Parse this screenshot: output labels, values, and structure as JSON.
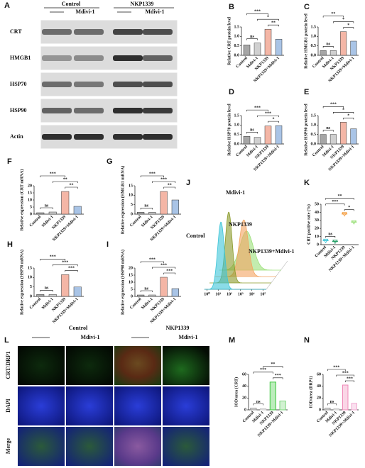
{
  "blot": {
    "panel": "A",
    "groups": [
      "Control",
      "NKP1339"
    ],
    "treatments": [
      "Mdivi-1",
      "Mdivi-1"
    ],
    "proteins": [
      "CRT",
      "HMGB1",
      "HSP70",
      "HSP90",
      "Actin"
    ]
  },
  "microscopy": {
    "panel": "L",
    "groups": [
      "Control",
      "NKP1339"
    ],
    "treatments": [
      "Mdivi-1",
      "Mdivi-1"
    ],
    "rows": [
      "CRT/DRP1",
      "DAPI",
      "Merge"
    ]
  },
  "chart_data": [
    {
      "panel": "B",
      "type": "bar",
      "ylabel": "Relative CRT protein level",
      "categories": [
        "Control",
        "Mdivi-1",
        "NKP1339",
        "NKP1339+Mdivi-1"
      ],
      "values": [
        0.55,
        0.65,
        1.38,
        0.85
      ],
      "colors": [
        "#a6a6a6",
        "#d0d0d0",
        "#f4b6a6",
        "#a9c4e6"
      ],
      "ylim": [
        0,
        1.5
      ],
      "yticks": [
        {
          "value": 0,
          "label": "0.0"
        },
        0.5,
        {
          "value": 1,
          "label": "1.0"
        },
        1.5
      ],
      "comparisons": [
        {
          "label": "ns",
          "pair": [
            0,
            1
          ]
        },
        {
          "label": "**",
          "pair": [
            2,
            3
          ]
        },
        {
          "label": "*",
          "pair": [
            1,
            3
          ]
        },
        {
          "label": "***",
          "pair": [
            0,
            2
          ]
        }
      ]
    },
    {
      "panel": "C",
      "type": "bar",
      "ylabel": "Relative HMGB1 protein level",
      "categories": [
        "Control",
        "Mdivi-1",
        "NKP1339",
        "NKP1339+Mdivi-1"
      ],
      "values": [
        0.25,
        0.25,
        1.25,
        0.75
      ],
      "colors": [
        "#a6a6a6",
        "#d0d0d0",
        "#f4b6a6",
        "#a9c4e6"
      ],
      "ylim": [
        0,
        1.5
      ],
      "yticks": [
        {
          "value": 0,
          "label": "0.0"
        },
        0.5,
        {
          "value": 1,
          "label": "1.0"
        },
        1.5
      ],
      "comparisons": [
        {
          "label": "ns",
          "pair": [
            0,
            1
          ]
        },
        {
          "label": "*",
          "pair": [
            2,
            3
          ]
        },
        {
          "label": "*",
          "pair": [
            1,
            3
          ]
        },
        {
          "label": "**",
          "pair": [
            0,
            2
          ]
        }
      ]
    },
    {
      "panel": "D",
      "type": "bar",
      "ylabel": "Relative HSP70 protein level",
      "categories": [
        "Control",
        "Mdivi-1",
        "NKP1339",
        "NKP1339+Mdivi-1"
      ],
      "values": [
        0.4,
        0.35,
        0.95,
        0.97
      ],
      "colors": [
        "#a6a6a6",
        "#d0d0d0",
        "#f4b6a6",
        "#a9c4e6"
      ],
      "ylim": [
        0,
        1.5
      ],
      "yticks": [
        {
          "value": 0,
          "label": "0.0"
        },
        0.5,
        {
          "value": 1,
          "label": "1.0"
        },
        1.5
      ],
      "comparisons": [
        {
          "label": "ns",
          "pair": [
            0,
            1
          ]
        },
        {
          "label": "*",
          "pair": [
            2,
            3
          ]
        },
        {
          "label": "***",
          "pair": [
            1,
            3
          ]
        },
        {
          "label": "***",
          "pair": [
            0,
            2
          ]
        }
      ]
    },
    {
      "panel": "E",
      "type": "bar",
      "ylabel": "Relative HSP90 protein level",
      "categories": [
        "Control",
        "Mdivi-1",
        "NKP1339",
        "NKP1339+Mdivi-1"
      ],
      "values": [
        0.5,
        0.5,
        1.15,
        0.8
      ],
      "colors": [
        "#a6a6a6",
        "#d0d0d0",
        "#f4b6a6",
        "#a9c4e6"
      ],
      "ylim": [
        0,
        1.5
      ],
      "yticks": [
        {
          "value": 0,
          "label": "0.0"
        },
        0.5,
        {
          "value": 1,
          "label": "1.0"
        },
        1.5
      ],
      "comparisons": [
        {
          "label": "ns",
          "pair": [
            0,
            1
          ]
        },
        {
          "label": "*",
          "pair": [
            2,
            3
          ]
        },
        {
          "label": "*",
          "pair": [
            1,
            3
          ]
        },
        {
          "label": "***",
          "pair": [
            0,
            2
          ]
        }
      ]
    },
    {
      "panel": "F",
      "type": "bar",
      "ylabel": "Relative expression (CRT mRNA)",
      "categories": [
        "Control",
        "Mdivi-1",
        "NKP1339",
        "NKP1339+Mdivi-1"
      ],
      "values": [
        1,
        1.5,
        16,
        5.5
      ],
      "colors": [
        "#a6a6a6",
        "#d0d0d0",
        "#f4b6a6",
        "#a9c4e6"
      ],
      "ylim": [
        0,
        20
      ],
      "yticks": [
        0,
        5,
        10,
        15,
        20
      ],
      "comparisons": [
        {
          "label": "ns",
          "pair": [
            0,
            1
          ]
        },
        {
          "label": "**",
          "pair": [
            2,
            3
          ]
        },
        {
          "label": "**",
          "pair": [
            1,
            3
          ]
        },
        {
          "label": "***",
          "pair": [
            0,
            2
          ]
        }
      ]
    },
    {
      "panel": "G",
      "type": "bar",
      "ylabel": "Relative expression (HMGB1 mRNA)",
      "categories": [
        "Control",
        "Mdivi-1",
        "NKP1339",
        "NKP1339+Mdivi-1"
      ],
      "values": [
        1,
        1,
        12,
        7.5
      ],
      "colors": [
        "#a6a6a6",
        "#d0d0d0",
        "#f4b6a6",
        "#a9c4e6"
      ],
      "ylim": [
        0,
        15
      ],
      "yticks": [
        0,
        5,
        10,
        15
      ],
      "comparisons": [
        {
          "label": "ns",
          "pair": [
            0,
            1
          ]
        },
        {
          "label": "**",
          "pair": [
            2,
            3
          ]
        },
        {
          "label": "***",
          "pair": [
            1,
            3
          ]
        },
        {
          "label": "***",
          "pair": [
            0,
            2
          ]
        }
      ]
    },
    {
      "panel": "H",
      "type": "bar",
      "ylabel": "Relative expression (HSP70 mRNA)",
      "categories": [
        "Control",
        "Mdivi-1",
        "NKP1339",
        "NKP1339+Mdivi-1"
      ],
      "values": [
        1,
        1,
        11.5,
        5
      ],
      "colors": [
        "#a6a6a6",
        "#d0d0d0",
        "#f4b6a6",
        "#a9c4e6"
      ],
      "ylim": [
        0,
        15
      ],
      "yticks": [
        0,
        5,
        10,
        15
      ],
      "comparisons": [
        {
          "label": "ns",
          "pair": [
            0,
            1
          ]
        },
        {
          "label": "***",
          "pair": [
            2,
            3
          ]
        },
        {
          "label": "***",
          "pair": [
            1,
            3
          ]
        },
        {
          "label": "***",
          "pair": [
            0,
            2
          ]
        }
      ]
    },
    {
      "panel": "I",
      "type": "bar",
      "ylabel": "Relative expression (HSP90 mRNA)",
      "categories": [
        "Control",
        "Mdivi-1",
        "NKP1339",
        "NKP1339+Mdivi-1"
      ],
      "values": [
        1,
        1,
        13.5,
        5.5
      ],
      "colors": [
        "#a6a6a6",
        "#d0d0d0",
        "#f4b6a6",
        "#a9c4e6"
      ],
      "ylim": [
        0,
        20
      ],
      "yticks": [
        0,
        5,
        10,
        15,
        20
      ],
      "comparisons": [
        {
          "label": "ns",
          "pair": [
            0,
            1
          ]
        },
        {
          "label": "***",
          "pair": [
            2,
            3
          ]
        },
        {
          "label": "***",
          "pair": [
            1,
            3
          ]
        },
        {
          "label": "***",
          "pair": [
            0,
            2
          ]
        }
      ]
    },
    {
      "panel": "J",
      "type": "flow",
      "series": [
        {
          "name": "Control",
          "color": "#3cc5d8"
        },
        {
          "name": "Mdivi-1",
          "color": "#8a9a2a"
        },
        {
          "name": "NKP1339",
          "color": "#f4a460"
        },
        {
          "name": "NKP1339+Mdivi-1",
          "color": "#9be07a"
        }
      ],
      "xscale": "log",
      "xlim": [
        0.6,
        200000
      ],
      "xticks": [
        {
          "value": 1,
          "label": "10⁰"
        },
        {
          "value": 10,
          "label": "10¹"
        },
        {
          "value": 100,
          "label": "10²"
        },
        {
          "value": 1000,
          "label": "10³"
        },
        {
          "value": 10000,
          "label": "10⁴"
        },
        {
          "value": 100000,
          "label": "10⁵"
        }
      ]
    },
    {
      "panel": "K",
      "type": "dot",
      "ylabel": "CRT positive rate (%)",
      "categories": [
        "Control",
        "Mdivi-1",
        "NKP1339",
        "NKP1339+Mdivi-1"
      ],
      "values": [
        5,
        4,
        38,
        28
      ],
      "colors": [
        "#3cc5d8",
        "#2aa06a",
        "#f49a3a",
        "#9be07a"
      ],
      "ylim": [
        0,
        50
      ],
      "yticks": [
        0,
        10,
        20,
        30,
        40,
        50
      ],
      "comparisons": [
        {
          "label": "ns",
          "pair": [
            0,
            1
          ]
        },
        {
          "label": "*",
          "pair": [
            2,
            3
          ]
        },
        {
          "label": "***",
          "pair": [
            0,
            2
          ]
        },
        {
          "label": "**",
          "pair": [
            0,
            3
          ]
        }
      ]
    },
    {
      "panel": "M",
      "type": "bar",
      "ylabel": "IOD/area (CRT)",
      "categories": [
        "Control",
        "Mdivi-1",
        "NKP1339",
        "NKP1339+Mdivi-1"
      ],
      "values": [
        3,
        2,
        47,
        15
      ],
      "colors": [
        "#9a9a9a",
        "#c8c8c8",
        "#3ec83e",
        "#7fd67f"
      ],
      "bar_style": "outline",
      "ylim": [
        0,
        60
      ],
      "yticks": [
        0,
        20,
        40,
        60
      ],
      "comparisons": [
        {
          "label": "ns",
          "pair": [
            0,
            1
          ]
        },
        {
          "label": "***",
          "pair": [
            2,
            3
          ]
        },
        {
          "label": "***",
          "pair": [
            0,
            2
          ]
        },
        {
          "label": "**",
          "pair": [
            1,
            3
          ]
        }
      ]
    },
    {
      "panel": "N",
      "type": "bar",
      "ylabel": "IOD/area (DRP1)",
      "categories": [
        "Control",
        "Mdivi-1",
        "NKP1339",
        "NKP1339+Mdivi-1"
      ],
      "values": [
        3,
        2,
        42,
        11
      ],
      "colors": [
        "#9a9a9a",
        "#c8c8c8",
        "#f08ab8",
        "#f0a8d0"
      ],
      "bar_style": "outline",
      "ylim": [
        0,
        60
      ],
      "yticks": [
        0,
        20,
        40,
        60
      ],
      "comparisons": [
        {
          "label": "ns",
          "pair": [
            0,
            1
          ]
        },
        {
          "label": "***",
          "pair": [
            2,
            3
          ]
        },
        {
          "label": "***",
          "pair": [
            1,
            3
          ]
        },
        {
          "label": "***",
          "pair": [
            0,
            2
          ]
        }
      ]
    }
  ]
}
